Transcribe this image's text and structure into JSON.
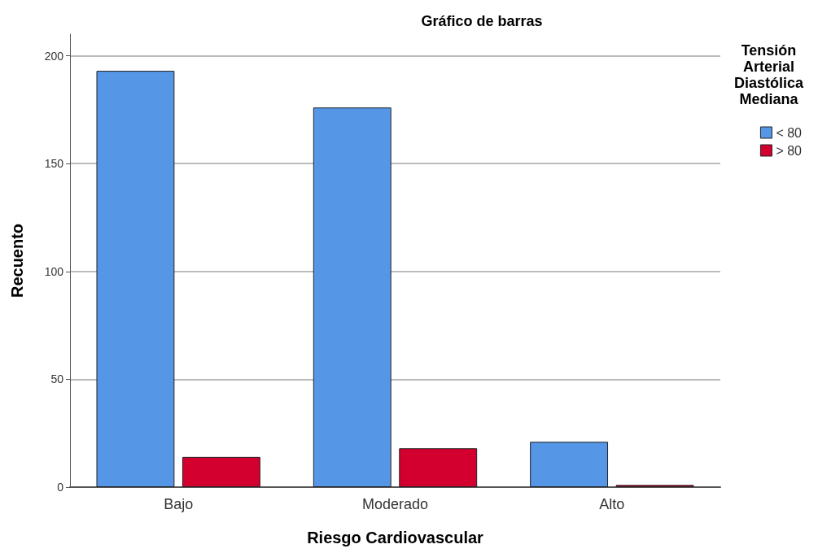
{
  "chart_data": {
    "type": "bar",
    "title": "Gráfico de barras",
    "xlabel": "Riesgo Cardiovascular",
    "ylabel": "Recuento",
    "legend_title": "Tensión\nArterial\nDiastólica\nMediana",
    "categories": [
      "Bajo",
      "Moderado",
      "Alto"
    ],
    "series": [
      {
        "name": "< 80",
        "color": "#5596e6",
        "values": [
          193,
          176,
          21
        ]
      },
      {
        "name": "> 80",
        "color": "#d3002f",
        "values": [
          14,
          18,
          1
        ]
      }
    ],
    "ylim": [
      0,
      210
    ],
    "yticks": [
      0,
      50,
      100,
      150,
      200
    ],
    "grid": "y",
    "legend": "right"
  }
}
